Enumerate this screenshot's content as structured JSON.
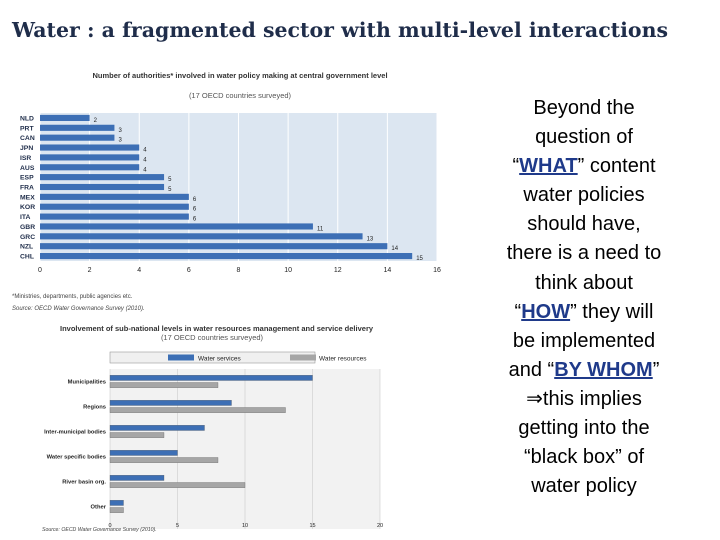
{
  "slide": {
    "title": "Water : a fragmented sector with multi-level interactions"
  },
  "side_text": {
    "line1": "Beyond the",
    "line2": "question of",
    "what_open": "“",
    "what": "WHAT",
    "what_close": "” content",
    "line4": "water policies",
    "line5": "should have,",
    "line6": "there is a need to",
    "line7": "think about",
    "how_open": "“",
    "how": "HOW",
    "how_close": "” they will",
    "line9": "be implemented",
    "bywhom_open": "and “",
    "bywhom": "BY WHOM",
    "bywhom_close": "”",
    "implies_symbol": "⇒",
    "line11": "this implies",
    "line12": "getting into the",
    "line13": "“black box” of",
    "line14": "water policy"
  },
  "chart_data": [
    {
      "type": "bar",
      "orientation": "horizontal",
      "title": "Number of authorities* involved in water policy making at central government level",
      "subtitle": "(17 OECD countries surveyed)",
      "categories": [
        "NLD",
        "PRT",
        "CAN",
        "JPN",
        "ISR",
        "AUS",
        "ESP",
        "FRA",
        "MEX",
        "KOR",
        "ITA",
        "GBR",
        "GRC",
        "NZL",
        "CHL"
      ],
      "values": [
        2,
        3,
        3,
        4,
        4,
        4,
        5,
        5,
        6,
        6,
        6,
        11,
        13,
        14,
        15
      ],
      "xticks": [
        "0",
        "2",
        "4",
        "6",
        "8",
        "10",
        "12",
        "14",
        "16"
      ],
      "xlim": [
        0,
        16
      ],
      "grid": true,
      "bar_color": "#3d6fb5",
      "footnote": "*Ministries, departments, public agencies etc.",
      "source": "Source: OECD Water Governance Survey (2010)."
    },
    {
      "type": "bar",
      "orientation": "horizontal",
      "title": "Involvement of sub-national levels in water resources management and service delivery",
      "subtitle": "(17 OECD countries surveyed)",
      "categories": [
        "Municipalities",
        "Regions",
        "Inter-municipal bodies",
        "Water specific bodies",
        "River basin org.",
        "Other"
      ],
      "series": [
        {
          "name": "Water services",
          "color": "#3d6fb5",
          "values": [
            15,
            9,
            7,
            5,
            4,
            1
          ]
        },
        {
          "name": "Water resources",
          "color": "#a6a6a6",
          "values": [
            8,
            13,
            4,
            8,
            10,
            1
          ]
        }
      ],
      "xticks": [
        "0",
        "5",
        "10",
        "15",
        "20"
      ],
      "xlim": [
        0,
        20
      ],
      "grid": true,
      "legend": "top",
      "source": "Source: OECD Water Governance Survey (2010)."
    }
  ]
}
